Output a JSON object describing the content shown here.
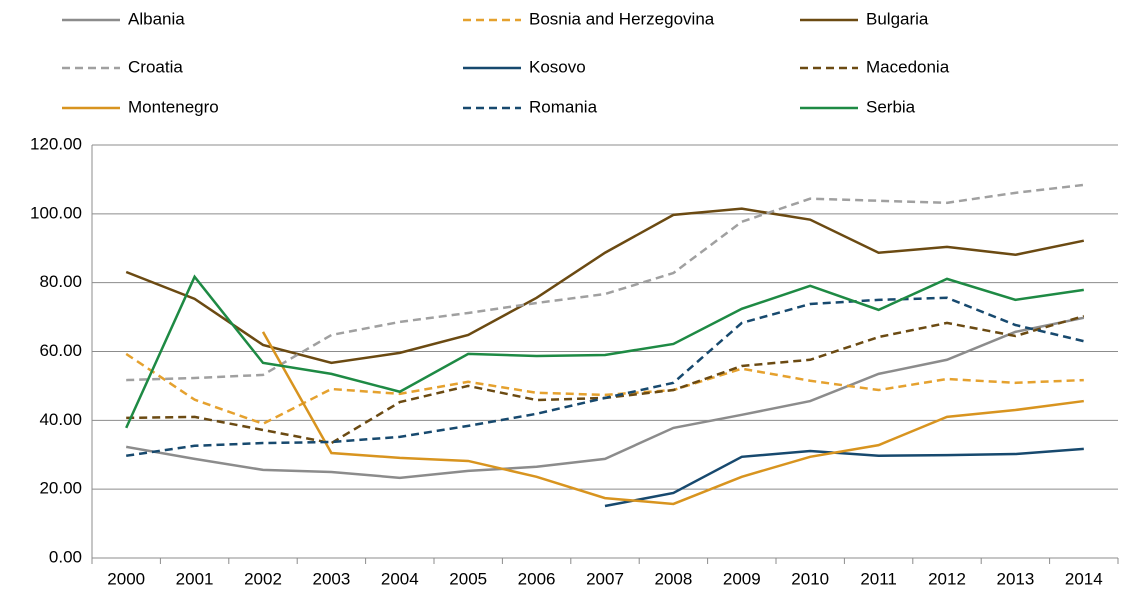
{
  "chart_data": {
    "type": "line",
    "categories": [
      "2000",
      "2001",
      "2002",
      "2003",
      "2004",
      "2005",
      "2006",
      "2007",
      "2008",
      "2009",
      "2010",
      "2011",
      "2012",
      "2013",
      "2014"
    ],
    "series": [
      {
        "name": "Albania",
        "color": "#8c8c8c",
        "dashed": false,
        "values": [
          32.3,
          28.8,
          25.6,
          25,
          23.3,
          25.3,
          26.5,
          28.8,
          37.8,
          41.6,
          45.6,
          53.5,
          57.6,
          65.7,
          69.8
        ]
      },
      {
        "name": "Bosnia and Herzegovina",
        "color": "#e5a12e",
        "dashed": true,
        "values": [
          59.3,
          46,
          39,
          49.1,
          47.7,
          51.2,
          48,
          47.4,
          48.8,
          55,
          51.5,
          48.8,
          52,
          50.9,
          51.7
        ]
      },
      {
        "name": "Bulgaria",
        "color": "#6b4a12",
        "dashed": false,
        "values": [
          83.1,
          75.3,
          61.9,
          56.7,
          59.6,
          64.8,
          75.6,
          88.7,
          99.7,
          101.5,
          98.3,
          88.7,
          90.4,
          88.1,
          92.2
        ]
      },
      {
        "name": "Croatia",
        "color": "#a0a0a0",
        "dashed": true,
        "values": [
          51.7,
          52.3,
          53.2,
          64.8,
          68.6,
          71.2,
          74.1,
          76.7,
          82.8,
          97.7,
          104.4,
          103.8,
          103.2,
          106.1,
          108.4
        ]
      },
      {
        "name": "Kosovo",
        "color": "#17496e",
        "dashed": false,
        "values": [
          null,
          null,
          null,
          null,
          null,
          null,
          null,
          15.1,
          18.9,
          29.4,
          31.1,
          29.7,
          29.9,
          30.2,
          31.7
        ]
      },
      {
        "name": "Macedonia",
        "color": "#6b4a12",
        "dashed": true,
        "values": [
          40.7,
          41,
          37.2,
          33.4,
          45.3,
          50,
          45.9,
          46.5,
          48.8,
          55.8,
          57.6,
          64.2,
          68.3,
          64.5,
          70.3
        ]
      },
      {
        "name": "Montenegro",
        "color": "#d8941f",
        "dashed": false,
        "values": [
          null,
          null,
          65.7,
          30.5,
          29.1,
          28.2,
          23.6,
          17.4,
          15.7,
          23.6,
          29.4,
          32.8,
          41,
          43,
          45.6
        ]
      },
      {
        "name": "Romania",
        "color": "#17496e",
        "dashed": true,
        "values": [
          29.7,
          32.6,
          33.4,
          33.7,
          35.2,
          38.4,
          41.9,
          46.5,
          50.9,
          68.3,
          73.8,
          75,
          75.6,
          67.7,
          63
        ]
      },
      {
        "name": "Serbia",
        "color": "#1e8a44",
        "dashed": false,
        "values": [
          37.8,
          81.7,
          56.7,
          53.5,
          48.3,
          59.3,
          58.7,
          59,
          62.2,
          72.4,
          79.1,
          72.1,
          81.1,
          75,
          77.9
        ]
      }
    ],
    "ylim": [
      0,
      120
    ],
    "yticks": [
      {
        "value": 0,
        "label": "0.00"
      },
      {
        "value": 20,
        "label": "20.00"
      },
      {
        "value": 40,
        "label": "40.00"
      },
      {
        "value": 60,
        "label": "60.00"
      },
      {
        "value": 80,
        "label": "80.00"
      },
      {
        "value": 100,
        "label": "100.00"
      },
      {
        "value": 120,
        "label": "120.00"
      }
    ],
    "grid": true
  }
}
